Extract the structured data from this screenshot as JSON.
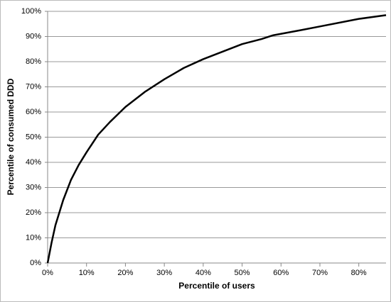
{
  "chart_data": {
    "type": "line",
    "x_label": "Percentile of users",
    "y_label": "Percentile of consumed DDD",
    "x": [
      0,
      1,
      2,
      4,
      6,
      8,
      10,
      13,
      16,
      20,
      25,
      30,
      35,
      40,
      45,
      50,
      55,
      58,
      65,
      70,
      80,
      87
    ],
    "values": [
      0,
      8,
      15,
      25,
      33,
      39,
      44,
      51,
      56,
      62,
      68,
      73,
      77.5,
      81,
      84,
      87,
      89,
      90.5,
      92.5,
      94,
      97,
      98.5
    ],
    "color": "#000000",
    "xlim": [
      0,
      87
    ],
    "ylim": [
      0,
      100
    ],
    "xticks": [
      {
        "value": 0,
        "label": "0%"
      },
      {
        "value": 10,
        "label": "10%"
      },
      {
        "value": 20,
        "label": "20%"
      },
      {
        "value": 30,
        "label": "30%"
      },
      {
        "value": 40,
        "label": "40%"
      },
      {
        "value": 50,
        "label": "50%"
      },
      {
        "value": 60,
        "label": "60%"
      },
      {
        "value": 70,
        "label": "70%"
      },
      {
        "value": 80,
        "label": "80%"
      }
    ],
    "yticks": [
      {
        "value": 0,
        "label": "0%"
      },
      {
        "value": 10,
        "label": "10%"
      },
      {
        "value": 20,
        "label": "20%"
      },
      {
        "value": 30,
        "label": "30%"
      },
      {
        "value": 40,
        "label": "40%"
      },
      {
        "value": 50,
        "label": "50%"
      },
      {
        "value": 60,
        "label": "60%"
      },
      {
        "value": 70,
        "label": "70%"
      },
      {
        "value": 80,
        "label": "80%"
      },
      {
        "value": 90,
        "label": "90%"
      },
      {
        "value": 100,
        "label": "100%"
      }
    ],
    "grid": true
  }
}
